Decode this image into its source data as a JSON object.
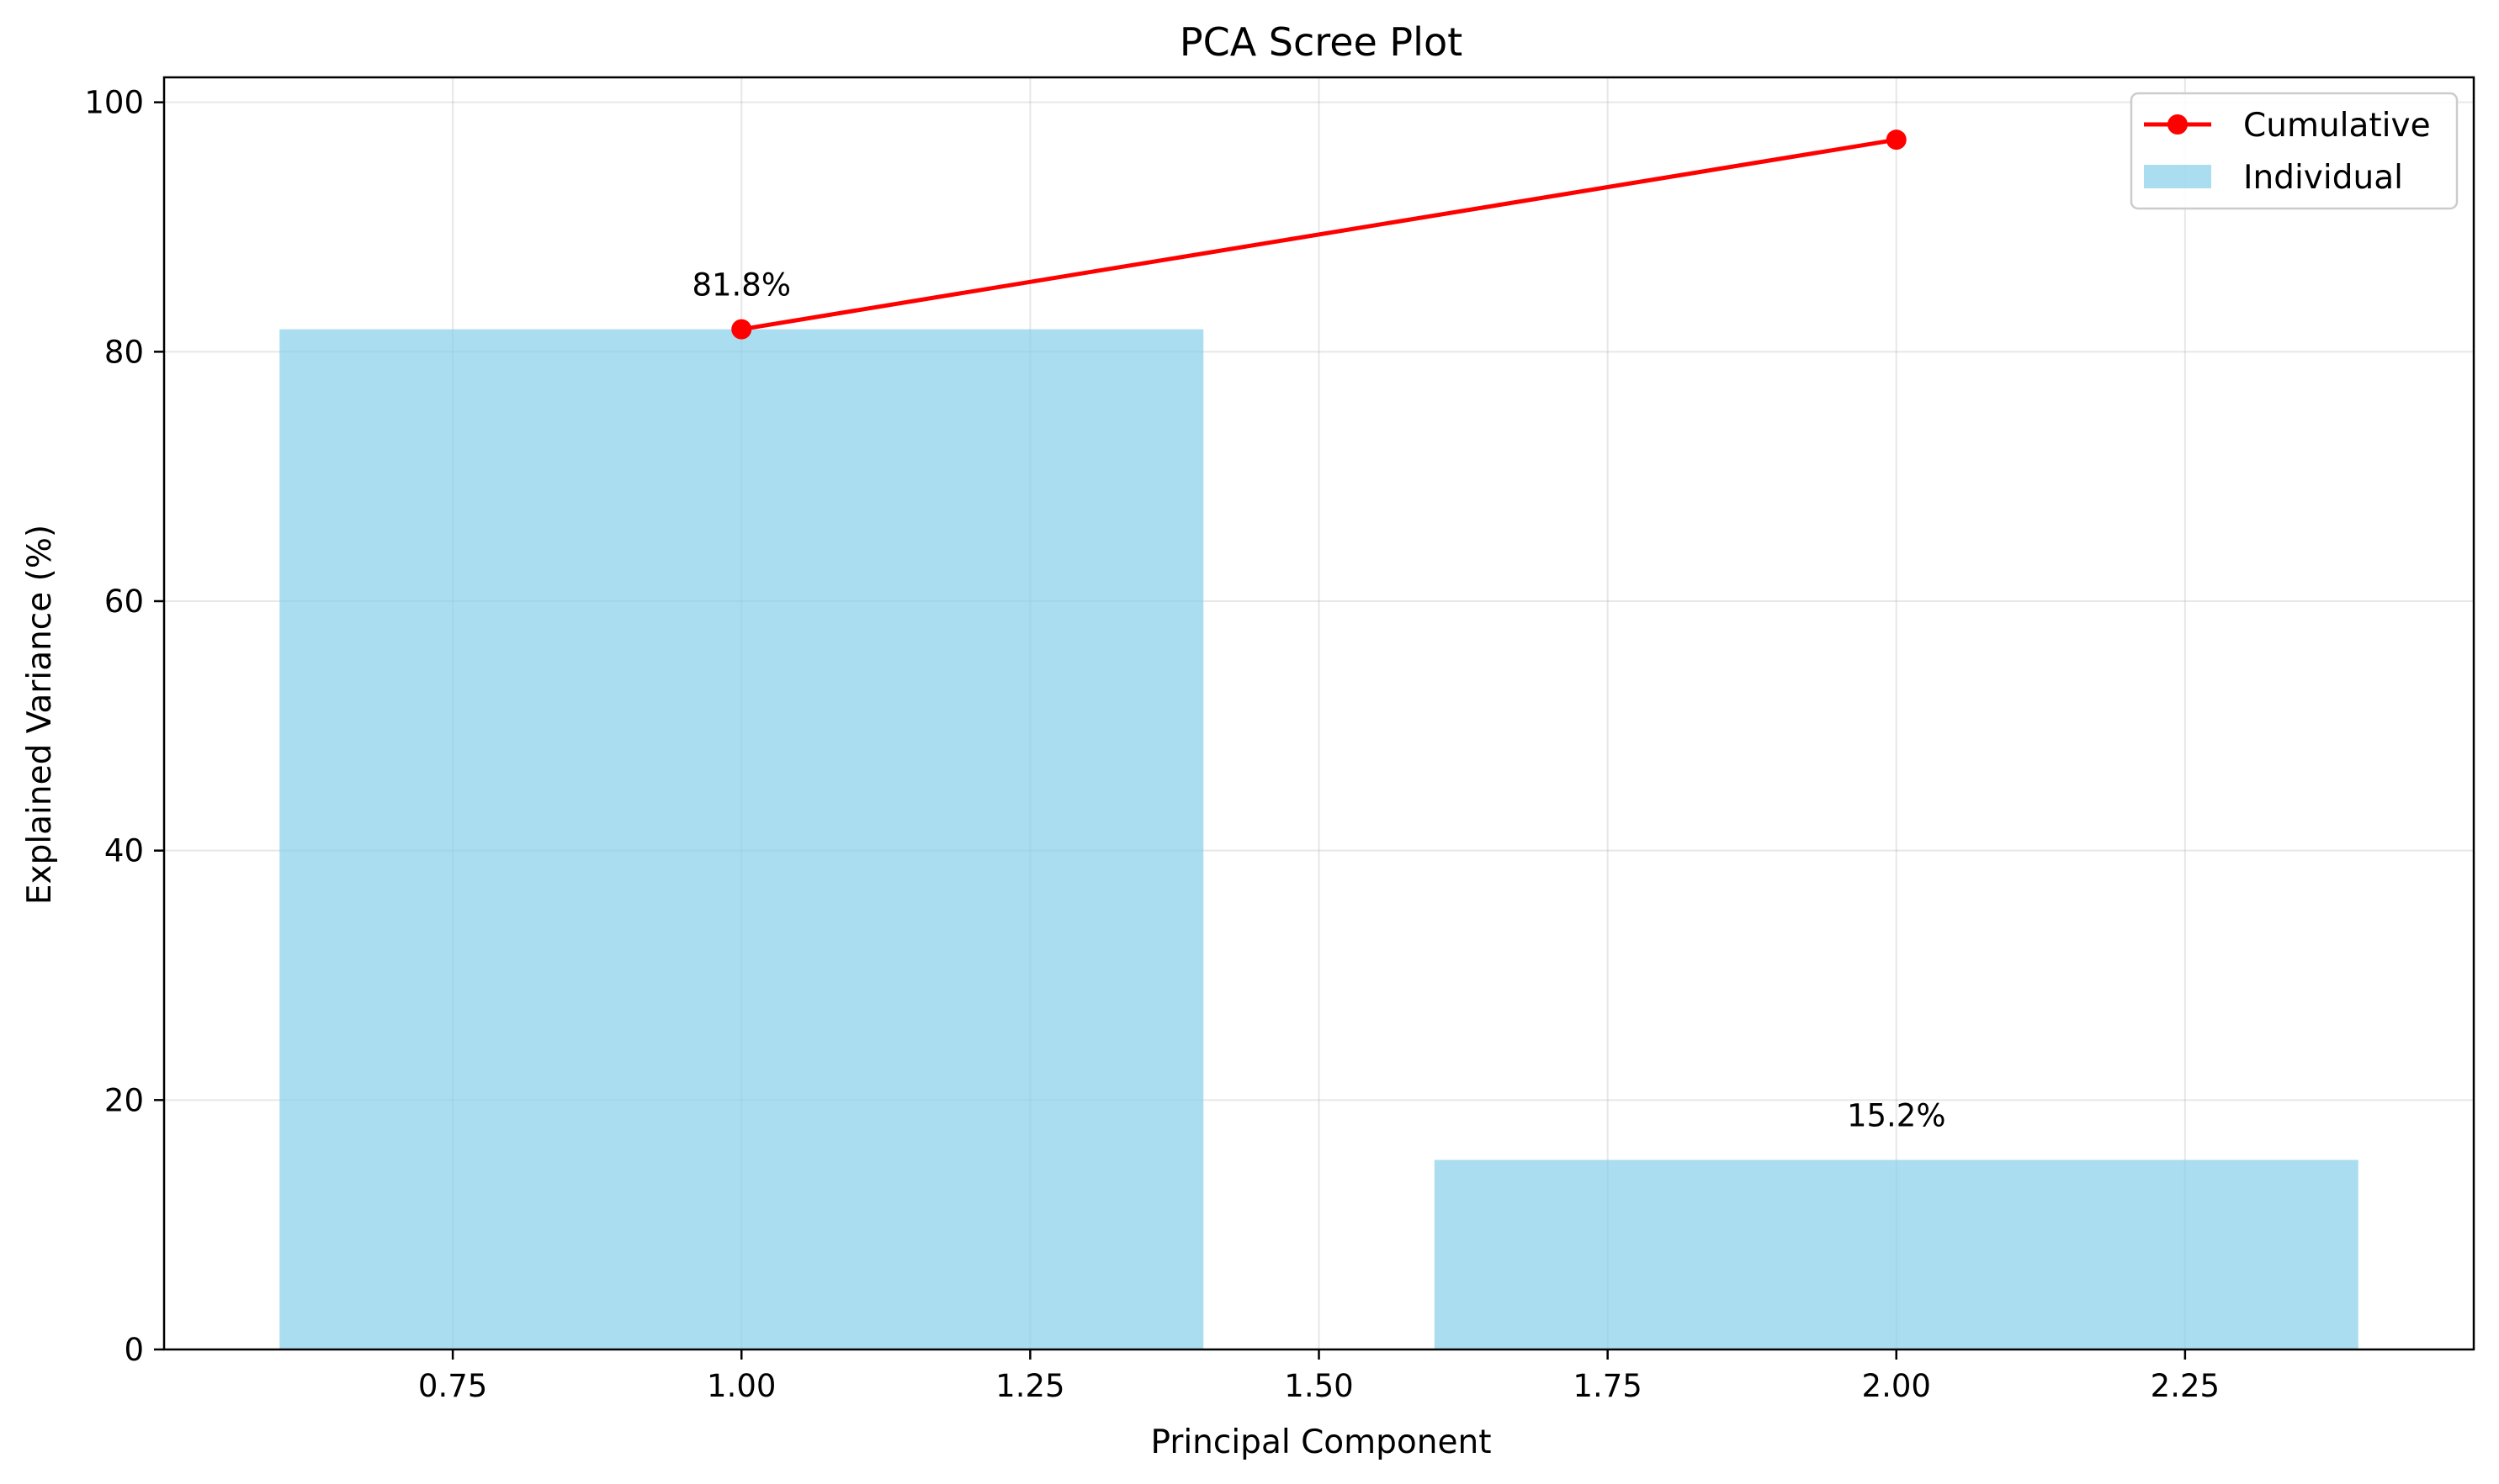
{
  "chart_data": {
    "type": "bar",
    "title": "PCA Scree Plot",
    "xlabel": "Principal Component",
    "ylabel": "Explained Variance (%)",
    "xlim": [
      0.5,
      2.5
    ],
    "ylim": [
      0,
      102
    ],
    "xticks": [
      0.75,
      1.0,
      1.25,
      1.5,
      1.75,
      2.0,
      2.25
    ],
    "xtick_labels": [
      "0.75",
      "1.00",
      "1.25",
      "1.50",
      "1.75",
      "2.00",
      "2.25"
    ],
    "yticks": [
      0,
      20,
      40,
      60,
      80,
      100
    ],
    "ytick_labels": [
      "0",
      "20",
      "40",
      "60",
      "80",
      "100"
    ],
    "grid": true,
    "legend_position": "top-right",
    "series": [
      {
        "name": "Individual",
        "type": "bar",
        "x": [
          1,
          2
        ],
        "values": [
          81.8,
          15.2
        ],
        "bar_width": 0.8,
        "labels": [
          "81.8%",
          "15.2%"
        ],
        "color": "#87CEEB"
      },
      {
        "name": "Cumulative",
        "type": "line",
        "x": [
          1,
          2
        ],
        "values": [
          81.8,
          97.0
        ],
        "color": "#FF0000",
        "marker": "circle"
      }
    ]
  }
}
